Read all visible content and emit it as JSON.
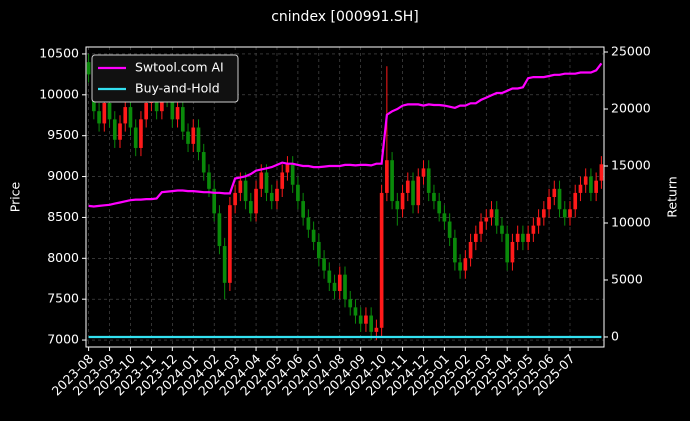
{
  "chart_data": {
    "type": "candlestick",
    "title": "cnindex [000991.SH]",
    "ylabel": "Price",
    "y2label": "Return",
    "categories": [
      "2023-08",
      null,
      null,
      null,
      "2023-09",
      null,
      null,
      null,
      "2023-10",
      null,
      null,
      null,
      "2023-11",
      null,
      null,
      null,
      "2023-12",
      null,
      null,
      null,
      "2024-01",
      null,
      null,
      null,
      "2024-02",
      null,
      null,
      null,
      "2024-03",
      null,
      null,
      null,
      "2024-04",
      null,
      null,
      null,
      "2024-05",
      null,
      null,
      null,
      "2024-06",
      null,
      null,
      null,
      "2024-07",
      null,
      null,
      null,
      "2024-08",
      null,
      null,
      null,
      "2024-09",
      null,
      null,
      null,
      "2024-10",
      null,
      null,
      null,
      "2024-11",
      null,
      null,
      null,
      "2024-12",
      null,
      null,
      null,
      "2025-01",
      null,
      null,
      null,
      "2025-02",
      null,
      null,
      null,
      "2025-03",
      null,
      null,
      null,
      "2025-04",
      null,
      null,
      null,
      "2025-05",
      null,
      null,
      null,
      "2025-06",
      null,
      null,
      null,
      "2025-07",
      null,
      null,
      null,
      null,
      null,
      null
    ],
    "open": [
      10400,
      10250,
      9800,
      9650,
      9900,
      9700,
      9450,
      9650,
      9850,
      9600,
      9350,
      9700,
      9900,
      10050,
      9800,
      10100,
      9950,
      9700,
      9850,
      9550,
      9400,
      9600,
      9300,
      9050,
      8850,
      8550,
      8150,
      7700,
      8650,
      8800,
      8950,
      8700,
      8550,
      8850,
      9050,
      8800,
      8700,
      8850,
      9050,
      9150,
      8900,
      8700,
      8500,
      8350,
      8200,
      8000,
      7850,
      7700,
      7600,
      7800,
      7500,
      7400,
      7300,
      7200,
      7300,
      7100,
      7150,
      8800,
      9200,
      8700,
      8600,
      8800,
      8950,
      8650,
      9000,
      9100,
      8800,
      8700,
      8550,
      8450,
      8250,
      7950,
      7850,
      8000,
      8200,
      8300,
      8450,
      8500,
      8600,
      8400,
      8300,
      7950,
      8200,
      8300,
      8200,
      8300,
      8400,
      8500,
      8600,
      8750,
      8850,
      8600,
      8500,
      8600,
      8800,
      8900,
      9000,
      8800,
      8950
    ],
    "high": [
      10500,
      10350,
      9900,
      10000,
      10000,
      9800,
      9750,
      9950,
      9950,
      9700,
      9800,
      10000,
      10150,
      10150,
      10200,
      10200,
      10050,
      9950,
      9950,
      9650,
      9700,
      9700,
      9400,
      9150,
      8950,
      8650,
      8250,
      8750,
      8900,
      9050,
      9050,
      8800,
      8950,
      9150,
      9150,
      8900,
      8950,
      9150,
      9250,
      9250,
      9000,
      8800,
      8600,
      8450,
      8300,
      8100,
      7950,
      7800,
      7900,
      7900,
      7600,
      7500,
      7400,
      7400,
      7400,
      7250,
      8900,
      10350,
      9300,
      8800,
      8900,
      9050,
      9050,
      9100,
      9200,
      9200,
      8900,
      8800,
      8650,
      8550,
      8350,
      8050,
      8100,
      8300,
      8400,
      8550,
      8600,
      8700,
      8700,
      8500,
      8400,
      8300,
      8400,
      8400,
      8400,
      8500,
      8600,
      8700,
      8850,
      8950,
      8950,
      8700,
      8700,
      8900,
      9000,
      9100,
      9100,
      9050,
      9250
    ],
    "low": [
      10150,
      9700,
      9550,
      9550,
      9600,
      9350,
      9350,
      9550,
      9500,
      9250,
      9250,
      9600,
      9800,
      9700,
      9700,
      9850,
      9600,
      9600,
      9450,
      9300,
      9300,
      9200,
      8950,
      8750,
      8450,
      8050,
      7500,
      7600,
      8550,
      8700,
      8600,
      8450,
      8450,
      8750,
      8700,
      8600,
      8600,
      8750,
      8950,
      8800,
      8600,
      8400,
      8250,
      8100,
      7900,
      7750,
      7600,
      7500,
      7500,
      7400,
      7300,
      7200,
      7100,
      7100,
      7000,
      7000,
      7050,
      8700,
      8600,
      8400,
      8500,
      8700,
      8550,
      8550,
      8900,
      8700,
      8600,
      8450,
      8350,
      8150,
      7850,
      7750,
      7750,
      7900,
      8100,
      8200,
      8350,
      8400,
      8300,
      8200,
      7850,
      7850,
      8100,
      8100,
      8100,
      8200,
      8300,
      8400,
      8500,
      8650,
      8500,
      8400,
      8400,
      8500,
      8700,
      8800,
      8700,
      8700,
      8850
    ],
    "close": [
      10250,
      9800,
      9650,
      9900,
      9700,
      9450,
      9650,
      9850,
      9600,
      9350,
      9700,
      9900,
      10050,
      9800,
      10100,
      9950,
      9700,
      9850,
      9550,
      9400,
      9600,
      9300,
      9050,
      8850,
      8550,
      8150,
      7700,
      8650,
      8800,
      8950,
      8700,
      8550,
      8850,
      9050,
      8800,
      8700,
      8850,
      9050,
      9150,
      8900,
      8700,
      8500,
      8350,
      8200,
      8000,
      7850,
      7700,
      7600,
      7800,
      7500,
      7400,
      7300,
      7200,
      7300,
      7100,
      7150,
      8800,
      9200,
      8700,
      8600,
      8800,
      8950,
      8650,
      9000,
      9100,
      8800,
      8700,
      8550,
      8450,
      8250,
      7950,
      7850,
      8000,
      8200,
      8300,
      8450,
      8500,
      8600,
      8400,
      8300,
      7950,
      8200,
      8300,
      8200,
      8300,
      8400,
      8500,
      8600,
      8750,
      8850,
      8600,
      8500,
      8600,
      8800,
      8900,
      9000,
      8800,
      8950,
      9150
    ],
    "up_color": "#ff1a1a",
    "down_color": "#0a8a0a",
    "series": [
      {
        "name": "Swtool.com AI",
        "color": "#ff00ff",
        "axis": "y2",
        "values": [
          11500,
          11450,
          11500,
          11550,
          11600,
          11700,
          11800,
          11900,
          12000,
          12050,
          12050,
          12100,
          12100,
          12150,
          12700,
          12750,
          12800,
          12850,
          12850,
          12800,
          12800,
          12750,
          12700,
          12700,
          12650,
          12650,
          12600,
          12600,
          13900,
          14000,
          14100,
          14300,
          14600,
          14700,
          14800,
          14900,
          15100,
          15300,
          15200,
          15200,
          15100,
          15000,
          15000,
          14900,
          14900,
          14950,
          15000,
          15000,
          15000,
          15100,
          15100,
          15050,
          15100,
          15100,
          15050,
          15200,
          15200,
          19500,
          19800,
          20000,
          20300,
          20400,
          20400,
          20400,
          20300,
          20400,
          20350,
          20350,
          20300,
          20200,
          20100,
          20300,
          20300,
          20500,
          20500,
          20800,
          21000,
          21200,
          21400,
          21400,
          21600,
          21800,
          21800,
          21900,
          22700,
          22800,
          22800,
          22800,
          22900,
          23000,
          23000,
          23100,
          23100,
          23100,
          23200,
          23200,
          23200,
          23400,
          24000
        ]
      },
      {
        "name": "Buy-and-Hold",
        "color": "#33e0f0",
        "axis": "y2",
        "values": [
          0,
          0,
          0,
          0,
          0,
          0,
          0,
          0,
          0,
          0,
          0,
          0,
          0,
          0,
          0,
          0,
          0,
          0,
          0,
          0,
          0,
          0,
          0,
          0,
          0,
          0,
          0,
          0,
          0,
          0,
          0,
          0,
          0,
          0,
          0,
          0,
          0,
          0,
          0,
          0,
          0,
          0,
          0,
          0,
          0,
          0,
          0,
          0,
          0,
          0,
          0,
          0,
          0,
          0,
          0,
          0,
          0,
          0,
          0,
          0,
          0,
          0,
          0,
          0,
          0,
          0,
          0,
          0,
          0,
          0,
          0,
          0,
          0,
          0,
          0,
          0,
          0,
          0,
          0,
          0,
          0,
          0,
          0,
          0,
          0,
          0,
          0,
          0,
          0,
          0,
          0,
          0,
          0,
          0,
          0,
          0,
          0,
          0,
          0
        ]
      }
    ],
    "ylim": [
      6915,
      10585
    ],
    "yticks": [
      7000,
      7500,
      8000,
      8500,
      9000,
      9500,
      10000,
      10500
    ],
    "y2lim": [
      -880,
      25440
    ],
    "y2ticks": [
      0,
      5000,
      10000,
      15000,
      20000,
      25000
    ],
    "grid": true,
    "legend": "upper left"
  }
}
